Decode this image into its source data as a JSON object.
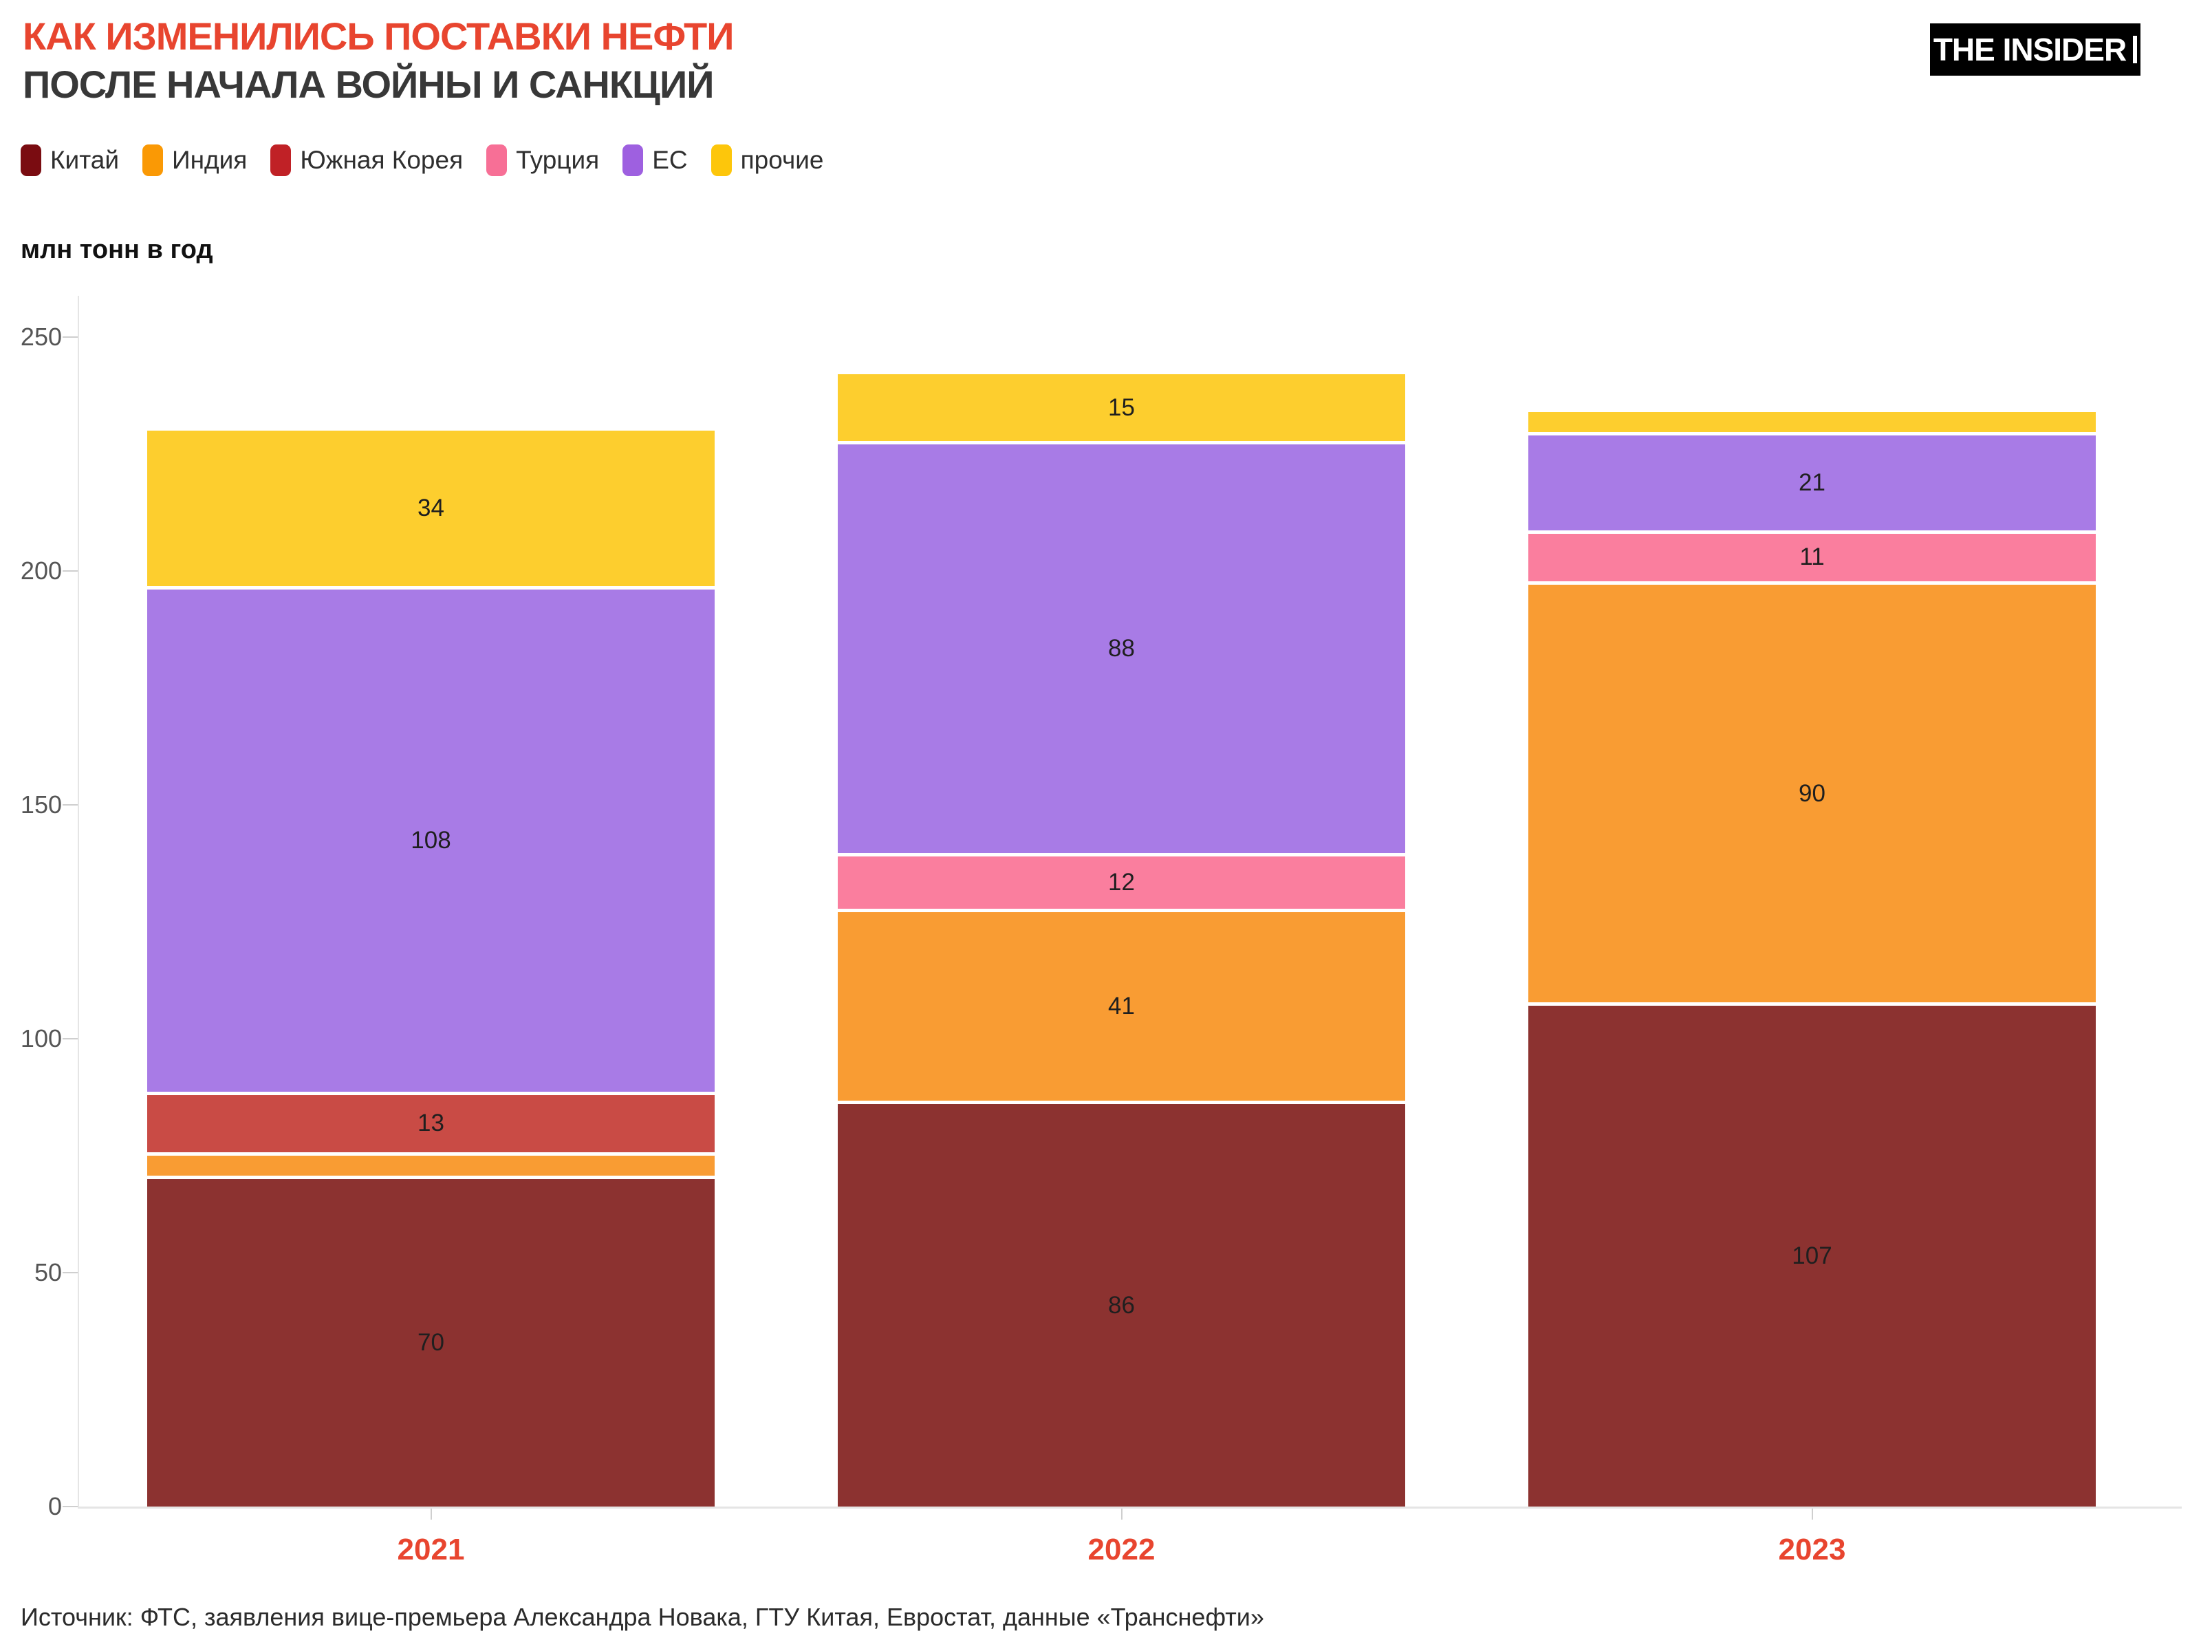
{
  "title": {
    "line1": "КАК ИЗМЕНИЛИСЬ ПОСТАВКИ НЕФТИ",
    "line2": "ПОСЛЕ НАЧАЛА ВОЙНЫ И САНКЦИЙ"
  },
  "logo": {
    "text": "THE INSIDER"
  },
  "colors": {
    "title_accent": "#E8452F",
    "title_secondary": "#383838",
    "axis_line": "#E5E5E5",
    "axis_text": "#555555",
    "year_label": "#E8452F",
    "segment_label": "#1F1F1F",
    "background": "#FFFFFF"
  },
  "y_axis": {
    "title": "млн тонн в год",
    "ticks": [
      "0",
      "50",
      "100",
      "150",
      "200",
      "250"
    ],
    "tick_values": [
      0,
      50,
      100,
      150,
      200,
      250
    ]
  },
  "chart_data": {
    "type": "bar",
    "stacked": true,
    "title": "КАК ИЗМЕНИЛИСЬ ПОСТАВКИ НЕФТИ ПОСЛЕ НАЧАЛА ВОЙНЫ И САНКЦИЙ",
    "ylabel": "млн тонн в год",
    "ylim": [
      0,
      250
    ],
    "grid": false,
    "legend_position": "top",
    "categories": [
      "2021",
      "2022",
      "2023"
    ],
    "series": [
      {
        "name": "Китай",
        "legend_color": "#7A0C11",
        "bar_color": "#8C3230",
        "values": [
          70,
          86,
          107
        ],
        "labels": [
          "70",
          "86",
          "107"
        ]
      },
      {
        "name": "Индия",
        "legend_color": "#FA9905",
        "bar_color": "#F99C33",
        "values": [
          5,
          41,
          90
        ],
        "labels": [
          "",
          "41",
          "90"
        ]
      },
      {
        "name": "Южная Корея",
        "legend_color": "#C02126",
        "bar_color": "#C94B45",
        "values": [
          13,
          0,
          0
        ],
        "labels": [
          "13",
          "",
          ""
        ]
      },
      {
        "name": "Турция",
        "legend_color": "#F76F96",
        "bar_color": "#FA7E9E",
        "values": [
          0,
          12,
          11
        ],
        "labels": [
          "",
          "12",
          "11"
        ]
      },
      {
        "name": "ЕС",
        "legend_color": "#9E60E0",
        "bar_color": "#A87BE6",
        "values": [
          108,
          88,
          21
        ],
        "labels": [
          "108",
          "88",
          "21"
        ]
      },
      {
        "name": "прочие",
        "legend_color": "#FDC60B",
        "bar_color": "#FDCE2E",
        "values": [
          34,
          15,
          5
        ],
        "labels": [
          "34",
          "15",
          ""
        ]
      }
    ],
    "totals": [
      230,
      242,
      234
    ]
  },
  "source": "Источник: ФТС, заявления вице-премьера Александра Новака, ГТУ Китая, Евростат, данные «Транснефти»"
}
